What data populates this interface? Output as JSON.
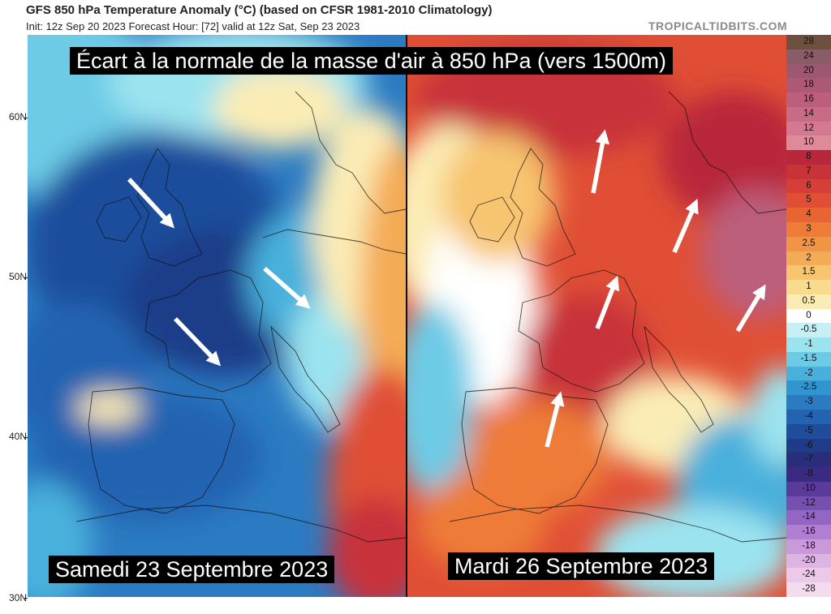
{
  "header": {
    "title": "GFS 850 hPa Temperature Anomaly (°C) (based on CFSR 1981-2010 Climatology)",
    "subtitle": "Init: 12z Sep 20 2023   Forecast Hour: [72]   valid at 12z Sat, Sep 23 2023",
    "brand": "TROPICALTIDBITS.COM"
  },
  "overlay": {
    "title": "Écart à la normale de la masse d'air à 850 hPa (vers 1500m)",
    "left_label": "Samedi 23 Septembre 2023",
    "right_label": "Mardi 26 Septembre 2023"
  },
  "latitude_labels": [
    "60N",
    "50N",
    "40N",
    "30N"
  ],
  "color_scale": {
    "labels": [
      "28",
      "24",
      "20",
      "18",
      "16",
      "14",
      "12",
      "10",
      "8",
      "7",
      "6",
      "5",
      "4",
      "3",
      "2.5",
      "2",
      "1.5",
      "1",
      "0.5",
      "0",
      "-0.5",
      "-1",
      "-1.5",
      "-2",
      "-2.5",
      "-3",
      "-4",
      "-5",
      "-6",
      "-7",
      "-8",
      "-10",
      "-12",
      "-14",
      "-16",
      "-18",
      "-20",
      "-24",
      "-28"
    ],
    "colors": [
      "#6e5040",
      "#8a5c6a",
      "#9c5872",
      "#ad5876",
      "#bb5f7c",
      "#c86c86",
      "#d37a90",
      "#dd8a9a",
      "#b8283a",
      "#c8333a",
      "#d63f38",
      "#e04f35",
      "#e86433",
      "#ee7b38",
      "#f19443",
      "#f4ab55",
      "#f7c46f",
      "#f9db8e",
      "#fbecb5",
      "#ffffff",
      "#c6f0f4",
      "#9be3ef",
      "#6dcbe6",
      "#49b0db",
      "#3395cf",
      "#2b7bc2",
      "#2463b1",
      "#1f4d9c",
      "#1f3c88",
      "#2a2e7a",
      "#3b2a82",
      "#5a3a9a",
      "#7650b0",
      "#9466c3",
      "#b07fd1",
      "#c999da",
      "#deb4e2",
      "#ecc9e8",
      "#f4dbee"
    ]
  },
  "arrow_color": "#ffffff",
  "colors": {
    "cold_deep": "#1f4d9c",
    "cold_mid": "#3395cf",
    "cold_light": "#9be3ef",
    "warm_light": "#f7c46f",
    "warm_mid": "#e86433",
    "warm_deep": "#c8333a"
  }
}
